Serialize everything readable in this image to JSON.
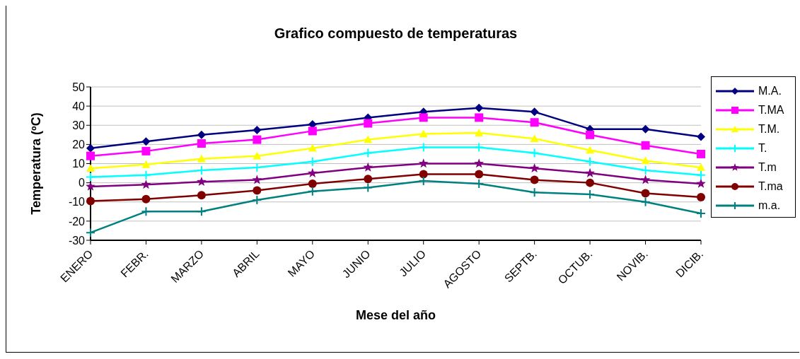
{
  "chart_data": {
    "type": "line",
    "title": "Grafico compuesto de temperaturas",
    "xlabel": "Mese del año",
    "ylabel": "Temperatura (ºC)",
    "categories": [
      "ENERO",
      "FEBR.",
      "MARZO",
      "ABRIL",
      "MAYO",
      "JUNIO",
      "JULIO",
      "AGOSTO",
      "SEPTB.",
      "OCTUB.",
      "NOVIB.",
      "DICIB."
    ],
    "ylim": [
      -30,
      50
    ],
    "yticks": [
      -30,
      -20,
      -10,
      0,
      10,
      20,
      30,
      40,
      50
    ],
    "grid": "y",
    "legend": "right",
    "series": [
      {
        "name": "M.A.",
        "color": "#000080",
        "marker": "diamond",
        "values": [
          18,
          21.5,
          25,
          27.5,
          30.5,
          34,
          37,
          39,
          37,
          28,
          28,
          24
        ]
      },
      {
        "name": "T.MA",
        "color": "#ff00ff",
        "marker": "square",
        "values": [
          14,
          16.5,
          20.5,
          22.5,
          27,
          31,
          34,
          34,
          31.5,
          25,
          19.5,
          15
        ]
      },
      {
        "name": "T.M.",
        "color": "#ffff00",
        "marker": "triangle",
        "values": [
          7.5,
          9.5,
          12.5,
          14,
          18,
          22.5,
          25.5,
          26,
          23,
          17,
          11.5,
          8
        ]
      },
      {
        "name": "T.",
        "color": "#00ffff",
        "marker": "cross",
        "values": [
          3,
          4,
          6.5,
          8,
          11,
          15.5,
          18.5,
          18.5,
          15.5,
          11,
          6.5,
          4
        ]
      },
      {
        "name": "T.m",
        "color": "#800080",
        "marker": "star",
        "values": [
          -2,
          -1,
          0.5,
          1.5,
          5,
          8,
          10,
          10,
          7.5,
          5,
          1.5,
          -0.5
        ]
      },
      {
        "name": "T.ma",
        "color": "#800000",
        "marker": "circle",
        "values": [
          -9.5,
          -8.5,
          -6.5,
          -4,
          -0.5,
          2,
          4.5,
          4.5,
          1.5,
          0,
          -5.5,
          -7.5
        ]
      },
      {
        "name": "m.a.",
        "color": "#008080",
        "marker": "cross",
        "values": [
          -26,
          -15,
          -15,
          -9,
          -4.5,
          -2.5,
          1,
          -0.5,
          -5,
          -6,
          -10,
          -16
        ]
      }
    ]
  }
}
